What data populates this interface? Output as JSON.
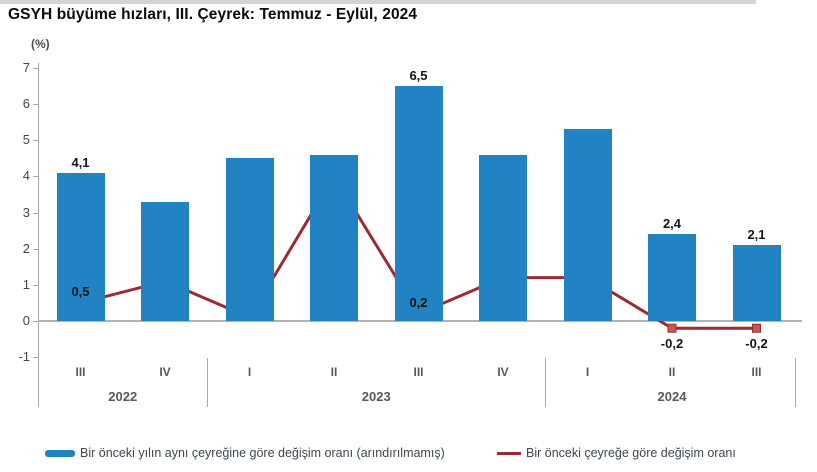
{
  "header": {
    "title": "GSYH büyüme hızları, III. Çeyrek: Temmuz - Eylül, 2024"
  },
  "chart_data": {
    "type": "bar+line",
    "title": "GSYH büyüme hızları, III. Çeyrek: Temmuz - Eylül, 2024",
    "unit_label": "(%)",
    "quarters": [
      "III",
      "IV",
      "I",
      "II",
      "III",
      "IV",
      "I",
      "II",
      "III"
    ],
    "year_groups": [
      {
        "label": "2022",
        "count": 2
      },
      {
        "label": "2023",
        "count": 4
      },
      {
        "label": "2024",
        "count": 3
      }
    ],
    "y_axis": {
      "ticks": [
        7,
        6,
        5,
        4,
        3,
        2,
        1,
        0,
        -1
      ],
      "min": -1,
      "max": 7
    },
    "grid": false,
    "legend_position": "bottom",
    "series": [
      {
        "name": "Bir önceki yılın aynı çeyreğine göre değişim oranı (arındırılmamış)",
        "type": "bar",
        "color": "#2182C4",
        "values": [
          4.1,
          3.3,
          4.5,
          4.6,
          6.5,
          4.6,
          5.3,
          2.4,
          2.1
        ],
        "labels": [
          "4,1",
          null,
          null,
          null,
          "6,5",
          null,
          null,
          "2,4",
          "2,1"
        ]
      },
      {
        "name": "Bir önceki çeyreğe göre değişim oranı",
        "type": "line",
        "color": "#9A2B36",
        "marker_color": "#C9574F",
        "values": [
          0.5,
          1.1,
          0.1,
          4.0,
          0.2,
          1.2,
          1.2,
          -0.2,
          -0.2
        ],
        "labels": [
          "0,5",
          null,
          null,
          null,
          "0,2",
          null,
          null,
          "-0,2",
          "-0,2"
        ],
        "marker_indices": [
          0,
          4,
          7,
          8
        ]
      }
    ]
  }
}
